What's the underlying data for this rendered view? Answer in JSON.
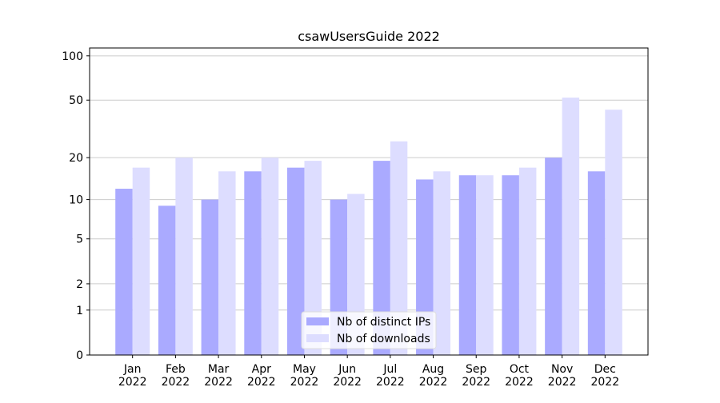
{
  "chart_data": {
    "type": "bar",
    "title": "csawUsersGuide 2022",
    "categories": [
      [
        "Jan",
        "2022"
      ],
      [
        "Feb",
        "2022"
      ],
      [
        "Mar",
        "2022"
      ],
      [
        "Apr",
        "2022"
      ],
      [
        "May",
        "2022"
      ],
      [
        "Jun",
        "2022"
      ],
      [
        "Jul",
        "2022"
      ],
      [
        "Aug",
        "2022"
      ],
      [
        "Sep",
        "2022"
      ],
      [
        "Oct",
        "2022"
      ],
      [
        "Nov",
        "2022"
      ],
      [
        "Dec",
        "2022"
      ]
    ],
    "series": [
      {
        "name": "Nb of distinct IPs",
        "color": "#aaaaff",
        "values": [
          12,
          9,
          10,
          16,
          17,
          10,
          19,
          14,
          15,
          15,
          20,
          16
        ]
      },
      {
        "name": "Nb of downloads",
        "color": "#ddddff",
        "values": [
          17,
          20,
          16,
          20,
          19,
          11,
          26,
          16,
          15,
          17,
          52,
          43
        ]
      }
    ],
    "y_scale": "log1p",
    "ylim": [
      0,
      113
    ],
    "yticks": [
      0,
      1,
      2,
      5,
      10,
      20,
      50,
      100
    ],
    "grid": true,
    "legend": "lower center"
  }
}
